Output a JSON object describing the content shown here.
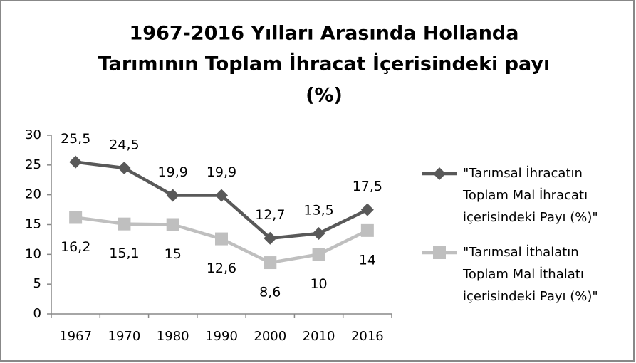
{
  "chart_data": {
    "type": "line",
    "title": [
      "1967-2016 Yılları Arasında Hollanda",
      "Tarımının Toplam İhracat İçerisindeki payı",
      "(%)"
    ],
    "categories": [
      "1967",
      "1970",
      "1980",
      "1990",
      "2000",
      "2010",
      "2016"
    ],
    "series": [
      {
        "name": "\"Tarımsal İhracatın Toplam Mal İhracatı içerisindeki Payı (%)\"",
        "color": "#595959",
        "marker": "diamond",
        "values": [
          25.5,
          24.5,
          19.9,
          19.9,
          12.7,
          13.5,
          17.5
        ],
        "value_labels": [
          "25,5",
          "24,5",
          "19,9",
          "19,9",
          "12,7",
          "13,5",
          "17,5"
        ]
      },
      {
        "name": "\"Tarımsal İthalatın Toplam Mal İthalatı içerisindeki Payı (%)\"",
        "color": "#bfbfbf",
        "marker": "square",
        "values": [
          16.2,
          15.1,
          15,
          12.6,
          8.6,
          10,
          14
        ],
        "value_labels": [
          "16,2",
          "15,1",
          "15",
          "12,6",
          "8,6",
          "10",
          "14"
        ]
      }
    ],
    "ylim": [
      0,
      30
    ],
    "yticks": [
      0,
      5,
      10,
      15,
      20,
      25,
      30
    ],
    "legend": "right"
  }
}
